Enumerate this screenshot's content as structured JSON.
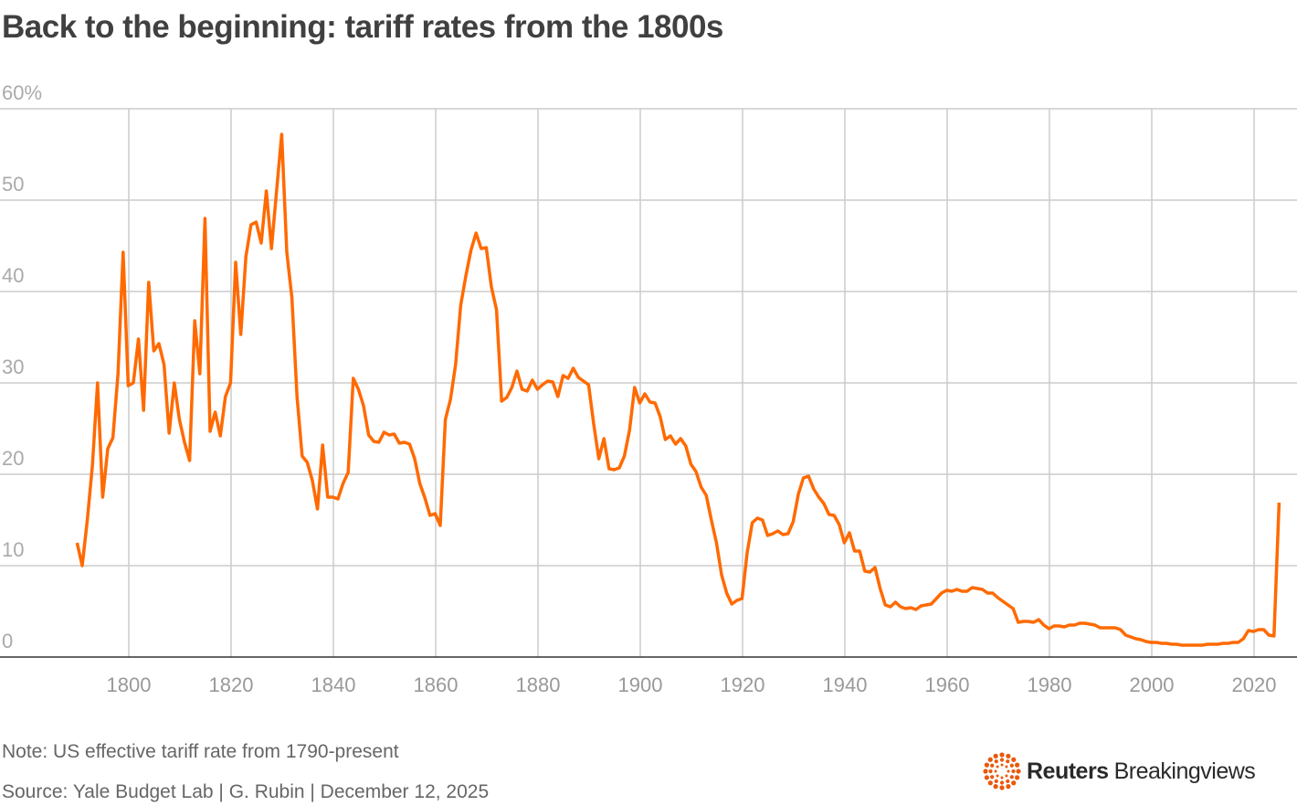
{
  "title": "Back to the beginning: tariff rates from the 1800s",
  "note": "Note: US effective tariff rate from 1790-present",
  "source": "Source: Yale Budget Lab | G. Rubin | December 12, 2025",
  "logo": {
    "brand": "Reuters",
    "product": "Breakingviews",
    "color": "#e8590c"
  },
  "chart_data": {
    "type": "line",
    "title": "Back to the beginning: tariff rates from the 1800s",
    "xlabel": "",
    "ylabel": "",
    "xlim": [
      1790,
      2025
    ],
    "ylim": [
      0,
      60
    ],
    "grid": true,
    "legend": "none",
    "line_color": "#ff6a00",
    "y_ticks": [
      "0",
      "10",
      "20",
      "30",
      "40",
      "50",
      "60%"
    ],
    "y_tick_values": [
      0,
      10,
      20,
      30,
      40,
      50,
      60
    ],
    "x_ticks": [
      "1800",
      "1820",
      "1840",
      "1860",
      "1880",
      "1900",
      "1920",
      "1940",
      "1960",
      "1980",
      "2000",
      "2020"
    ],
    "x_tick_values": [
      1800,
      1820,
      1840,
      1860,
      1880,
      1900,
      1920,
      1940,
      1960,
      1980,
      2000,
      2020
    ],
    "series": [
      {
        "x_start": 1790,
        "values": [
          12.5,
          10,
          15,
          21,
          30,
          17.5,
          22.8,
          24,
          31,
          44.3,
          29.7,
          30,
          34.8,
          27,
          41,
          33.5,
          34.3,
          32,
          24.5,
          30,
          26,
          23.5,
          21.5,
          36.8,
          31,
          48,
          24.7,
          26.8,
          24.2,
          28.5,
          30,
          43.2,
          35.3,
          43.8,
          47.3,
          47.6,
          45.3,
          51,
          44.7,
          51,
          57.2,
          44.3,
          39.3,
          28.5,
          22,
          21.3,
          19.3,
          16.2,
          23.2,
          17.5,
          17.5,
          17.3,
          19,
          20.2,
          30.5,
          29.3,
          27.5,
          24.3,
          23.6,
          23.5,
          24.6,
          24.3,
          24.4,
          23.4,
          23.5,
          23.3,
          21.7,
          19,
          17.4,
          15.5,
          15.7,
          14.4,
          26,
          28.2,
          32,
          38.5,
          41.7,
          44.5,
          46.4,
          44.7,
          44.8,
          40.5,
          38,
          28,
          28.4,
          29.5,
          31.3,
          29.3,
          29.1,
          30.3,
          29.3,
          29.8,
          30.2,
          30.1,
          28.5,
          30.8,
          30.5,
          31.6,
          30.6,
          30.2,
          29.8,
          25.5,
          21.7,
          23.9,
          20.6,
          20.5,
          20.7,
          22,
          24.8,
          29.5,
          27.8,
          28.8,
          27.9,
          27.8,
          26.3,
          23.8,
          24.2,
          23.3,
          23.9,
          23.1,
          21.1,
          20.3,
          18.6,
          17.7,
          15,
          12.5,
          9,
          7,
          5.8,
          6.2,
          6.4,
          11.4,
          14.7,
          15.2,
          15,
          13.3,
          13.5,
          13.8,
          13.4,
          13.5,
          14.8,
          17.8,
          19.6,
          19.8,
          18.4,
          17.5,
          16.8,
          15.6,
          15.5,
          14.5,
          12.5,
          13.6,
          11.6,
          11.6,
          9.4,
          9.3,
          9.8,
          7.5,
          5.7,
          5.5,
          6,
          5.5,
          5.3,
          5.4,
          5.2,
          5.6,
          5.7,
          5.8,
          6.4,
          7,
          7.3,
          7.2,
          7.4,
          7.2,
          7.2,
          7.6,
          7.5,
          7.4,
          7,
          7,
          6.5,
          6.1,
          5.7,
          5.3,
          3.8,
          3.9,
          3.9,
          3.8,
          4.1,
          3.5,
          3.1,
          3.4,
          3.4,
          3.3,
          3.5,
          3.5,
          3.7,
          3.7,
          3.6,
          3.5,
          3.2,
          3.2,
          3.2,
          3.2,
          3,
          2.4,
          2.2,
          2,
          1.9,
          1.7,
          1.6,
          1.6,
          1.5,
          1.5,
          1.4,
          1.4,
          1.3,
          1.3,
          1.3,
          1.3,
          1.3,
          1.4,
          1.4,
          1.4,
          1.5,
          1.5,
          1.6,
          1.6,
          2,
          2.9,
          2.8,
          3,
          3,
          2.4,
          2.3,
          16.9
        ]
      }
    ]
  }
}
